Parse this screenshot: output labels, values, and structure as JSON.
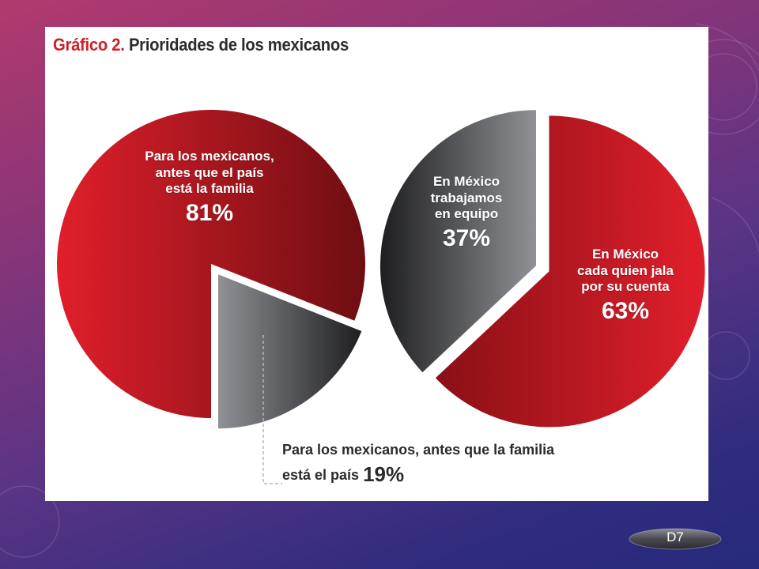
{
  "title": {
    "prefix": "Gráfico 2.",
    "main": "Prioridades de los mexicanos"
  },
  "colors": {
    "red_light": "#e01f2b",
    "red_dark": "#6e0e12",
    "gray_light": "#8f9196",
    "gray_dark": "#1e1e20"
  },
  "chart_data": [
    {
      "type": "pie",
      "slices": [
        {
          "text_lines": [
            "Para los mexicanos,",
            "antes que el país",
            "está la familia"
          ],
          "value_label": "81%",
          "value": 81,
          "color": "red"
        },
        {
          "text": "Para los mexicanos, antes que la familia",
          "text2": "está el país",
          "value_label": "19%",
          "value": 19,
          "color": "gray"
        }
      ]
    },
    {
      "type": "pie",
      "slices": [
        {
          "text_lines": [
            "En México",
            "trabajamos",
            "en equipo"
          ],
          "value_label": "37%",
          "value": 37,
          "color": "gray"
        },
        {
          "text_lines": [
            "En México",
            "cada quien jala",
            "por su cuenta"
          ],
          "value_label": "63%",
          "value": 63,
          "color": "red"
        }
      ]
    }
  ],
  "slide": {
    "badge_label": "D7"
  }
}
